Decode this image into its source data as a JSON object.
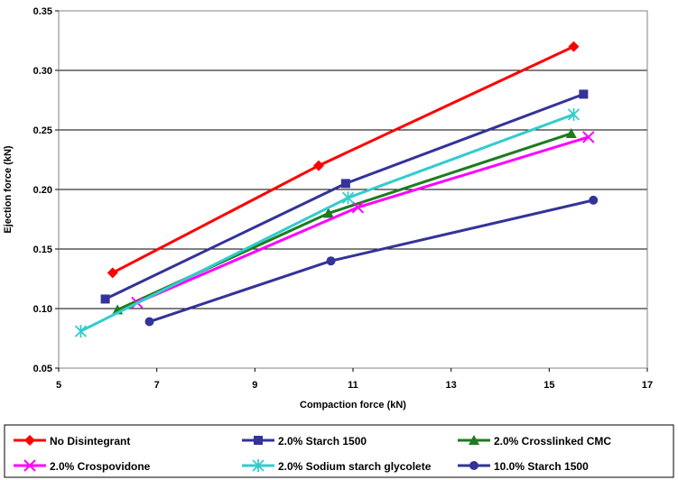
{
  "chart_data": {
    "type": "line",
    "xlabel": "Compaction force (kN)",
    "ylabel": "Ejection force (kN)",
    "xlim": [
      5,
      17
    ],
    "ylim": [
      0.05,
      0.35
    ],
    "xticks": [
      "5",
      "7",
      "9",
      "11",
      "13",
      "15",
      "17"
    ],
    "yticks": [
      "0.05",
      "0.10",
      "0.15",
      "0.20",
      "0.25",
      "0.30",
      "0.35"
    ],
    "grid": "horizontal",
    "legend_position": "bottom",
    "series": [
      {
        "name": "No Disintegrant",
        "color": "#ff0000",
        "marker": "diamond",
        "x": [
          6.1,
          10.3,
          15.5
        ],
        "y": [
          0.13,
          0.22,
          0.32
        ]
      },
      {
        "name": "2.0% Starch 1500",
        "color": "#333399",
        "marker": "square",
        "x": [
          5.95,
          10.85,
          15.7
        ],
        "y": [
          0.108,
          0.205,
          0.28
        ]
      },
      {
        "name": "2.0% Crosslinked CMC",
        "color": "#1e7b1e",
        "marker": "triangle",
        "x": [
          6.2,
          10.5,
          15.45
        ],
        "y": [
          0.099,
          0.18,
          0.247
        ]
      },
      {
        "name": "2.0% Crospovidone",
        "color": "#ff00ff",
        "marker": "x",
        "x": [
          6.6,
          11.1,
          15.8
        ],
        "y": [
          0.105,
          0.185,
          0.244
        ]
      },
      {
        "name": "2.0% Sodium starch glycolete",
        "color": "#33cccc",
        "marker": "asterisk",
        "x": [
          5.45,
          10.9,
          15.5
        ],
        "y": [
          0.081,
          0.193,
          0.263
        ]
      },
      {
        "name": "10.0% Starch 1500",
        "color": "#333399",
        "marker": "circle",
        "x": [
          6.85,
          10.55,
          15.9
        ],
        "y": [
          0.089,
          0.14,
          0.191
        ]
      }
    ]
  }
}
